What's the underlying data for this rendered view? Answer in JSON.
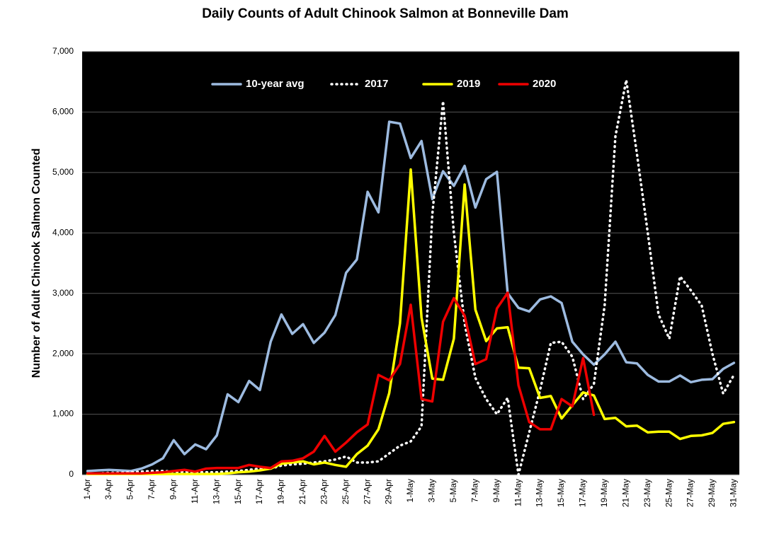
{
  "chart_data": {
    "type": "line",
    "title": "Daily Counts of Adult Chinook Salmon at Bonneville Dam",
    "y_label": "Number of Adult Chinook Salmon Counted",
    "categories": [
      "1-Apr",
      null,
      "3-Apr",
      null,
      "5-Apr",
      null,
      "7-Apr",
      null,
      "9-Apr",
      null,
      "11-Apr",
      null,
      "13-Apr",
      null,
      "15-Apr",
      null,
      "17-Apr",
      null,
      "19-Apr",
      null,
      "21-Apr",
      null,
      "23-Apr",
      null,
      "25-Apr",
      null,
      "27-Apr",
      null,
      "29-Apr",
      null,
      "1-May",
      null,
      "3-May",
      null,
      "5-May",
      null,
      "7-May",
      null,
      "9-May",
      null,
      "11-May",
      null,
      "13-May",
      null,
      "15-May",
      null,
      "17-May",
      null,
      "19-May",
      null,
      "21-May",
      null,
      "23-May",
      null,
      "25-May",
      null,
      "27-May",
      null,
      "29-May",
      null,
      "31-May"
    ],
    "series": [
      {
        "name": "10-year avg",
        "color": "#9dbbe0",
        "dash": "solid",
        "values": [
          60,
          70,
          80,
          70,
          60,
          100,
          170,
          270,
          570,
          340,
          500,
          420,
          650,
          1330,
          1200,
          1550,
          1400,
          2200,
          2650,
          2330,
          2490,
          2180,
          2350,
          2640,
          3340,
          3560,
          4680,
          4340,
          5840,
          5810,
          5240,
          5520,
          4560,
          5020,
          4780,
          5110,
          4420,
          4890,
          5010,
          3000,
          2760,
          2700,
          2900,
          2950,
          2840,
          2200,
          1990,
          1820,
          1990,
          2200,
          1860,
          1840,
          1650,
          1540,
          1540,
          1640,
          1530,
          1570,
          1580,
          1750,
          1850
        ]
      },
      {
        "name": "2017",
        "color": "#ffffff",
        "dash": "dotted",
        "values": [
          20,
          20,
          30,
          30,
          40,
          50,
          60,
          60,
          50,
          50,
          40,
          40,
          40,
          50,
          60,
          80,
          100,
          100,
          150,
          170,
          180,
          200,
          220,
          250,
          300,
          200,
          200,
          220,
          350,
          480,
          550,
          800,
          4300,
          6180,
          4000,
          2500,
          1600,
          1250,
          1000,
          1270,
          0,
          700,
          1400,
          2180,
          2200,
          1950,
          1250,
          1500,
          2800,
          5600,
          6530,
          5300,
          4000,
          2650,
          2250,
          3280,
          3050,
          2800,
          2000,
          1340,
          1650
        ]
      },
      {
        "name": "2019",
        "color": "#ffff00",
        "dash": "solid",
        "values": [
          10,
          10,
          10,
          10,
          10,
          10,
          10,
          10,
          10,
          10,
          10,
          10,
          10,
          20,
          40,
          50,
          70,
          100,
          180,
          200,
          220,
          170,
          200,
          160,
          130,
          340,
          480,
          750,
          1350,
          2500,
          5050,
          2600,
          1590,
          1570,
          2250,
          4800,
          2730,
          2210,
          2420,
          2440,
          1770,
          1760,
          1270,
          1300,
          930,
          1150,
          1360,
          1310,
          920,
          940,
          800,
          810,
          700,
          710,
          710,
          590,
          640,
          650,
          690,
          840,
          870
        ]
      },
      {
        "name": "2020",
        "color": "#ee0000",
        "dash": "solid",
        "values": [
          20,
          20,
          20,
          20,
          20,
          20,
          30,
          40,
          60,
          80,
          50,
          100,
          110,
          110,
          110,
          160,
          130,
          110,
          220,
          230,
          270,
          380,
          640,
          380,
          530,
          700,
          830,
          1650,
          1560,
          1830,
          2810,
          1250,
          1210,
          2530,
          2920,
          2630,
          1830,
          1910,
          2750,
          3010,
          1480,
          870,
          750,
          750,
          1250,
          1130,
          1930,
          990,
          null,
          null,
          null,
          null,
          null,
          null,
          null,
          null,
          null,
          null,
          null,
          null,
          null
        ]
      }
    ],
    "ylim": [
      0,
      7000
    ],
    "yticks": [
      0,
      {
        "value": 1000,
        "label": "1,000"
      },
      {
        "value": 2000,
        "label": "2,000"
      },
      {
        "value": 3000,
        "label": "3,000"
      },
      {
        "value": 4000,
        "label": "4,000"
      },
      {
        "value": 5000,
        "label": "5,000"
      },
      {
        "value": 6000,
        "label": "6,000"
      },
      {
        "value": 7000,
        "label": "7,000"
      }
    ],
    "grid": true,
    "background": "#000000",
    "legend": "top"
  }
}
